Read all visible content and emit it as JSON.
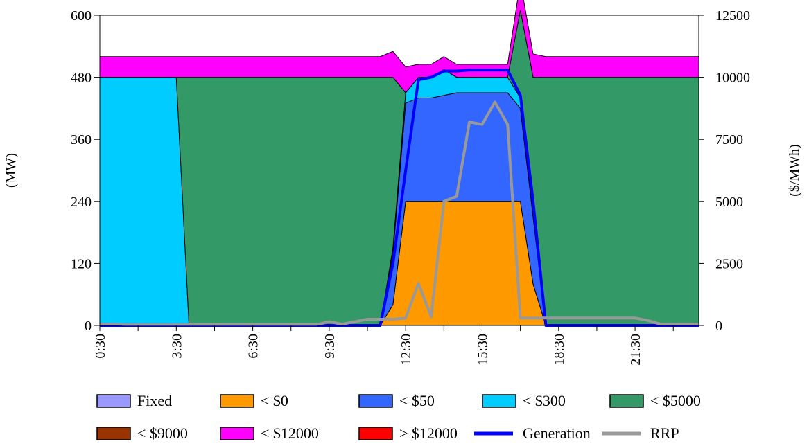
{
  "chart_data": {
    "type": "area",
    "xlabel": "",
    "y_left_label": "(MW)",
    "y_right_label": "($/MWh)",
    "y_left_range": [
      0,
      600
    ],
    "y_right_range": [
      0,
      12500
    ],
    "y_left_ticks": [
      "0",
      "120",
      "240",
      "360",
      "480",
      "600"
    ],
    "y_right_ticks": [
      "0",
      "2500",
      "5000",
      "7500",
      "10000",
      "12500"
    ],
    "x_tick_labels": [
      "0:30",
      "3:30",
      "6:30",
      "9:30",
      "12:30",
      "15:30",
      "18:30",
      "21:30"
    ],
    "grid": false,
    "legend_position": "bottom",
    "x": [
      "0:30",
      "1:00",
      "1:30",
      "2:00",
      "2:30",
      "3:00",
      "3:30",
      "4:00",
      "4:30",
      "5:00",
      "5:30",
      "6:00",
      "6:30",
      "7:00",
      "7:30",
      "8:00",
      "8:30",
      "9:00",
      "9:30",
      "10:00",
      "10:30",
      "11:00",
      "11:30",
      "12:00",
      "12:30",
      "13:00",
      "13:30",
      "14:00",
      "14:30",
      "15:00",
      "15:30",
      "16:00",
      "16:30",
      "17:00",
      "17:30",
      "18:00",
      "18:30",
      "19:00",
      "19:30",
      "20:00",
      "20:30",
      "21:00",
      "21:30",
      "22:00",
      "22:30",
      "23:00",
      "23:30",
      "0:00"
    ],
    "series": [
      {
        "name": "Fixed",
        "type": "area",
        "color": "#9999ff",
        "axis": "left",
        "values": [
          0,
          0,
          0,
          0,
          0,
          0,
          0,
          0,
          0,
          0,
          0,
          0,
          0,
          0,
          0,
          0,
          0,
          0,
          0,
          0,
          0,
          0,
          0,
          0,
          0,
          0,
          0,
          0,
          0,
          0,
          0,
          0,
          0,
          0,
          0,
          0,
          0,
          0,
          0,
          0,
          0,
          0,
          0,
          0,
          0,
          0,
          0,
          0
        ]
      },
      {
        "name": "< $0",
        "type": "area",
        "color": "#ff9900",
        "axis": "left",
        "values": [
          0,
          0,
          0,
          0,
          0,
          0,
          0,
          0,
          0,
          0,
          0,
          0,
          0,
          0,
          0,
          0,
          0,
          0,
          0,
          0,
          0,
          0,
          0,
          40,
          240,
          240,
          240,
          240,
          240,
          240,
          240,
          240,
          240,
          240,
          80,
          0,
          0,
          0,
          0,
          0,
          0,
          0,
          0,
          0,
          0,
          0,
          0,
          0
        ]
      },
      {
        "name": "< $50",
        "type": "area",
        "color": "#3366ff",
        "axis": "left",
        "values": [
          0,
          0,
          0,
          0,
          0,
          0,
          0,
          0,
          0,
          0,
          0,
          0,
          0,
          0,
          0,
          0,
          0,
          0,
          0,
          0,
          0,
          0,
          0,
          100,
          190,
          200,
          200,
          205,
          210,
          210,
          210,
          210,
          210,
          180,
          130,
          0,
          0,
          0,
          0,
          0,
          0,
          0,
          0,
          0,
          0,
          0,
          0,
          0
        ]
      },
      {
        "name": "< $300",
        "type": "area",
        "color": "#00ccff",
        "axis": "left",
        "values": [
          480,
          480,
          480,
          480,
          480,
          480,
          480,
          0,
          0,
          0,
          0,
          0,
          0,
          0,
          0,
          0,
          0,
          0,
          0,
          0,
          0,
          0,
          0,
          10,
          20,
          40,
          40,
          50,
          30,
          30,
          30,
          30,
          30,
          20,
          0,
          0,
          0,
          0,
          0,
          0,
          0,
          0,
          0,
          0,
          0,
          0,
          0,
          0
        ]
      },
      {
        "name": "< $5000",
        "type": "area",
        "color": "#339966",
        "axis": "left",
        "values": [
          0,
          0,
          0,
          0,
          0,
          0,
          0,
          480,
          480,
          480,
          480,
          480,
          480,
          480,
          480,
          480,
          480,
          480,
          480,
          480,
          480,
          480,
          480,
          330,
          0,
          0,
          0,
          0,
          0,
          0,
          0,
          0,
          0,
          170,
          270,
          480,
          480,
          480,
          480,
          480,
          480,
          480,
          480,
          480,
          480,
          480,
          480,
          480
        ]
      },
      {
        "name": "< $9000",
        "type": "area",
        "color": "#993300",
        "axis": "left",
        "values": [
          0,
          0,
          0,
          0,
          0,
          0,
          0,
          0,
          0,
          0,
          0,
          0,
          0,
          0,
          0,
          0,
          0,
          0,
          0,
          0,
          0,
          0,
          0,
          0,
          0,
          0,
          0,
          0,
          0,
          0,
          0,
          0,
          0,
          0,
          0,
          0,
          0,
          0,
          0,
          0,
          0,
          0,
          0,
          0,
          0,
          0,
          0,
          0
        ]
      },
      {
        "name": "< $12000",
        "type": "area",
        "color": "#ff00ff",
        "axis": "left",
        "values": [
          40,
          40,
          40,
          40,
          40,
          40,
          40,
          40,
          40,
          40,
          40,
          40,
          40,
          40,
          40,
          40,
          40,
          40,
          40,
          40,
          40,
          40,
          40,
          50,
          50,
          25,
          25,
          25,
          25,
          25,
          25,
          25,
          25,
          55,
          45,
          40,
          40,
          40,
          40,
          40,
          40,
          40,
          40,
          40,
          40,
          40,
          40,
          40
        ]
      },
      {
        "name": "> $12000",
        "type": "area",
        "color": "#ff0000",
        "axis": "left",
        "values": [
          0,
          0,
          0,
          0,
          0,
          0,
          0,
          0,
          0,
          0,
          0,
          0,
          0,
          0,
          0,
          0,
          0,
          0,
          0,
          0,
          0,
          0,
          0,
          0,
          0,
          0,
          0,
          0,
          0,
          0,
          0,
          0,
          0,
          0,
          0,
          0,
          0,
          0,
          0,
          0,
          0,
          0,
          0,
          0,
          0,
          0,
          0,
          0
        ]
      },
      {
        "name": "Generation",
        "type": "line",
        "color": "#0000ff",
        "axis": "left",
        "values": [
          0,
          0,
          0,
          0,
          0,
          0,
          0,
          0,
          0,
          0,
          0,
          0,
          0,
          0,
          0,
          0,
          0,
          0,
          0,
          0,
          0,
          0,
          0,
          0,
          0,
          0,
          0,
          0,
          0,
          0,
          0,
          0,
          0,
          0,
          0,
          0,
          0,
          0,
          0,
          0,
          0,
          0,
          0,
          0,
          0,
          0,
          0,
          0
        ],
        "overrides": [
          [
            22,
            0
          ],
          [
            23,
            120
          ],
          [
            24,
            300
          ],
          [
            25,
            475
          ],
          [
            26,
            480
          ],
          [
            27,
            492
          ],
          [
            28,
            492
          ],
          [
            29,
            494
          ],
          [
            30,
            494
          ],
          [
            31,
            494
          ],
          [
            32,
            494
          ],
          [
            33,
            445
          ],
          [
            34,
            240
          ],
          [
            35,
            0
          ]
        ]
      },
      {
        "name": "RRP",
        "type": "line",
        "color": "#999999",
        "axis": "right",
        "values": [
          50,
          50,
          30,
          30,
          30,
          30,
          30,
          30,
          30,
          30,
          30,
          30,
          30,
          30,
          30,
          30,
          30,
          30,
          150,
          50,
          150,
          250,
          250,
          250,
          300,
          1700,
          350,
          5000,
          5200,
          8200,
          8100,
          9000,
          8100,
          300,
          300,
          300,
          300,
          300,
          300,
          300,
          300,
          300,
          300,
          200,
          50,
          50,
          50,
          50
        ]
      }
    ]
  }
}
